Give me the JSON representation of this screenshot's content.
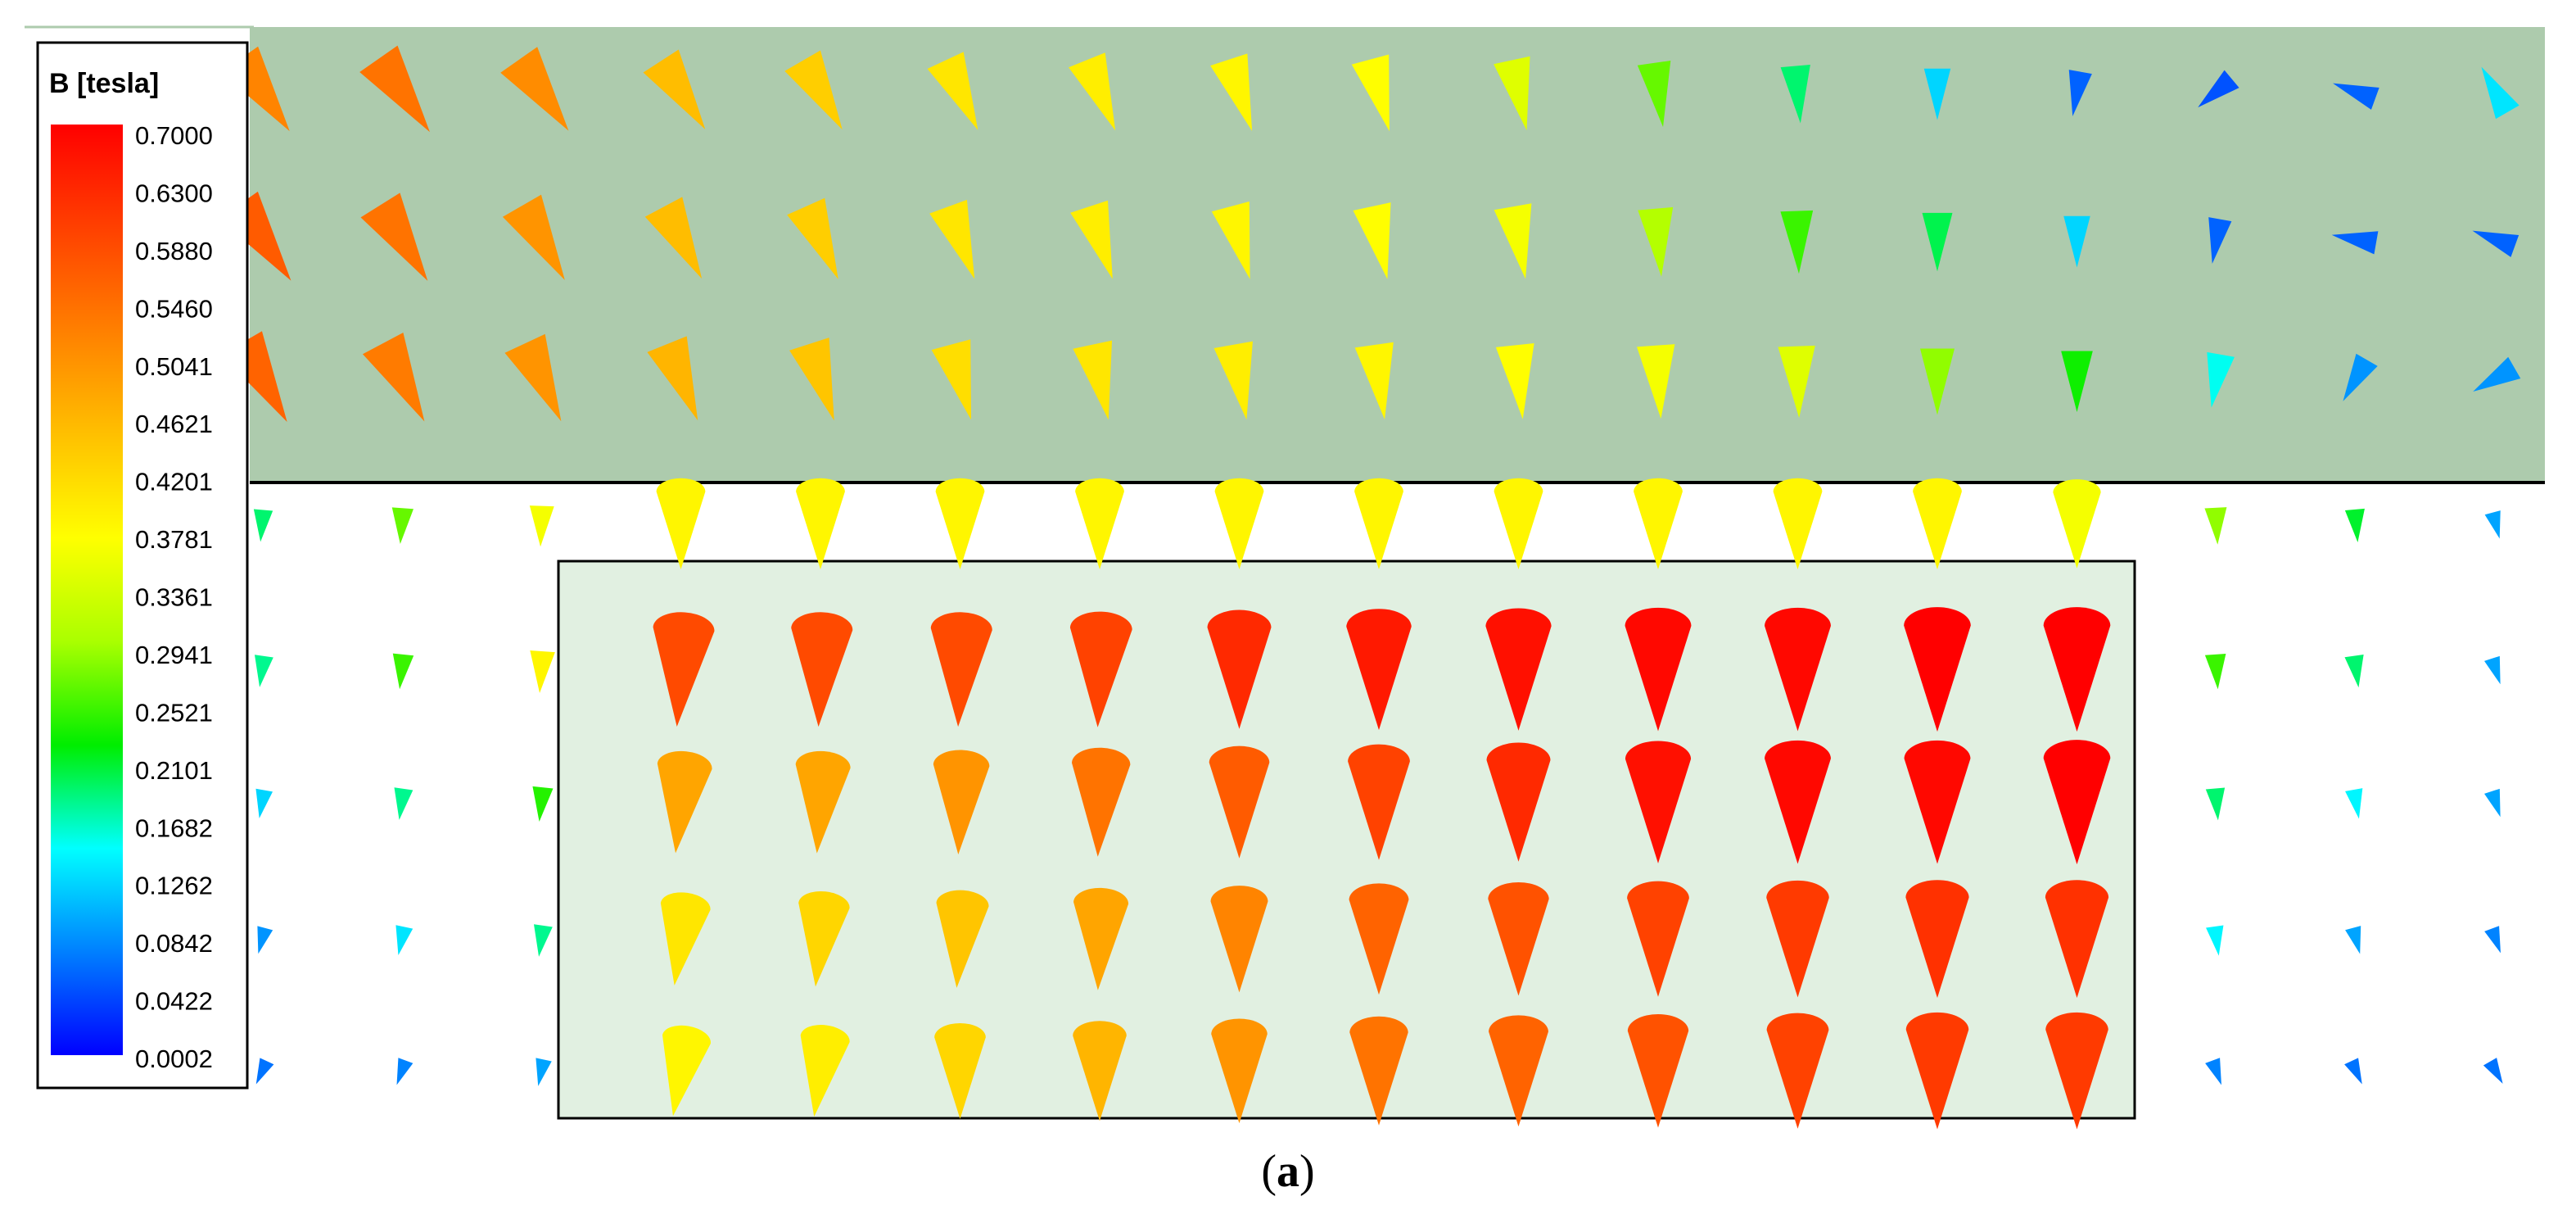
{
  "legend": {
    "title": "B [tesla]",
    "max": 0.7,
    "min": 0.0002,
    "ticks": [
      "0.7000",
      "0.6300",
      "0.5880",
      "0.5460",
      "0.5041",
      "0.4621",
      "0.4201",
      "0.3781",
      "0.3361",
      "0.2941",
      "0.2521",
      "0.2101",
      "0.1682",
      "0.1262",
      "0.0842",
      "0.0422",
      "0.0002"
    ],
    "colors": [
      "#ff0000",
      "#ff4000",
      "#ff8000",
      "#ffc000",
      "#ffff00",
      "#aaff00",
      "#00ee00",
      "#00ffff",
      "#0080ff",
      "#0000ff"
    ]
  },
  "colors": {
    "upper_region": "#adcbad",
    "lower_region": "#e1f0e1",
    "border": "#000000"
  },
  "caption": {
    "open": "(",
    "letter": "a",
    "close": ")"
  },
  "field_rows": [
    {
      "region": "upper",
      "values": [
        0.54,
        0.56,
        0.53,
        0.47,
        0.45,
        0.42,
        0.41,
        0.4,
        0.39,
        0.36,
        0.28,
        0.2,
        0.13,
        0.06,
        0.05,
        0.06,
        0.14
      ],
      "angles": [
        -35,
        -35,
        -35,
        -33,
        -30,
        -25,
        -22,
        -18,
        -15,
        -12,
        -8,
        -5,
        0,
        10,
        50,
        110,
        150
      ]
    },
    {
      "region": "upper",
      "values": [
        0.59,
        0.56,
        0.52,
        0.47,
        0.45,
        0.42,
        0.41,
        0.4,
        0.39,
        0.38,
        0.32,
        0.26,
        0.21,
        0.13,
        0.06,
        0.06,
        0.06
      ],
      "angles": [
        -35,
        -32,
        -30,
        -28,
        -24,
        -20,
        -18,
        -15,
        -12,
        -10,
        -5,
        -2,
        0,
        0,
        10,
        100,
        110
      ]
    },
    {
      "region": "upper",
      "values": [
        0.58,
        0.55,
        0.52,
        0.48,
        0.46,
        0.43,
        0.42,
        0.41,
        0.4,
        0.39,
        0.38,
        0.36,
        0.3,
        0.24,
        0.16,
        0.09,
        0.09
      ],
      "angles": [
        -30,
        -28,
        -25,
        -22,
        -18,
        -15,
        -12,
        -10,
        -8,
        -6,
        -4,
        -2,
        0,
        0,
        10,
        30,
        60
      ]
    },
    {
      "region": "lower",
      "values": [
        0.2,
        0.28,
        0.38,
        0.4,
        0.4,
        0.4,
        0.4,
        0.4,
        0.4,
        0.4,
        0.4,
        0.4,
        0.4,
        0.38,
        0.3,
        0.22,
        0.1
      ],
      "angles": [
        5,
        4,
        2,
        0,
        0,
        0,
        0,
        0,
        0,
        0,
        0,
        0,
        0,
        0,
        -3,
        -5,
        -15
      ]
    },
    {
      "region": "lower",
      "values": [
        0.19,
        0.26,
        0.4,
        0.61,
        0.61,
        0.61,
        0.62,
        0.65,
        0.67,
        0.68,
        0.69,
        0.69,
        0.7,
        0.7,
        0.26,
        0.2,
        0.1
      ],
      "angles": [
        8,
        6,
        4,
        4,
        2,
        2,
        2,
        0,
        0,
        0,
        0,
        0,
        0,
        0,
        -4,
        -8,
        -18
      ]
    },
    {
      "region": "lower",
      "values": [
        0.13,
        0.19,
        0.25,
        0.5,
        0.5,
        0.52,
        0.56,
        0.59,
        0.62,
        0.65,
        0.68,
        0.69,
        0.69,
        0.7,
        0.2,
        0.15,
        0.1
      ],
      "angles": [
        10,
        8,
        6,
        6,
        4,
        2,
        2,
        0,
        0,
        0,
        0,
        0,
        0,
        0,
        -5,
        -10,
        -18
      ]
    },
    {
      "region": "lower",
      "values": [
        0.09,
        0.14,
        0.19,
        0.42,
        0.44,
        0.46,
        0.5,
        0.54,
        0.58,
        0.6,
        0.62,
        0.63,
        0.64,
        0.64,
        0.15,
        0.1,
        0.08
      ],
      "angles": [
        15,
        12,
        8,
        8,
        6,
        4,
        2,
        0,
        0,
        0,
        0,
        0,
        0,
        0,
        -8,
        -15,
        -20
      ]
    },
    {
      "region": "lower",
      "values": [
        0.07,
        0.08,
        0.1,
        0.4,
        0.41,
        0.44,
        0.48,
        0.52,
        0.56,
        0.58,
        0.6,
        0.62,
        0.63,
        0.63,
        0.08,
        0.07,
        0.07
      ],
      "angles": [
        25,
        20,
        12,
        10,
        8,
        0,
        0,
        0,
        0,
        0,
        0,
        0,
        0,
        0,
        -20,
        -25,
        -30
      ]
    }
  ]
}
